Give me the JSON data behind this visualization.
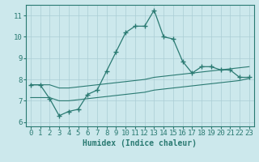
{
  "title": "",
  "xlabel": "Humidex (Indice chaleur)",
  "ylabel": "",
  "bg_color": "#cce8ec",
  "grid_color": "#aacdd4",
  "line_color": "#2a7a72",
  "xlim": [
    -0.5,
    23.5
  ],
  "ylim": [
    5.8,
    11.5
  ],
  "yticks": [
    6,
    7,
    8,
    9,
    10,
    11
  ],
  "xticks": [
    0,
    1,
    2,
    3,
    4,
    5,
    6,
    7,
    8,
    9,
    10,
    11,
    12,
    13,
    14,
    15,
    16,
    17,
    18,
    19,
    20,
    21,
    22,
    23
  ],
  "line1_x": [
    0,
    1,
    2,
    3,
    4,
    5,
    6,
    7,
    8,
    9,
    10,
    11,
    12,
    13,
    14,
    15,
    16,
    17,
    18,
    19,
    20,
    21,
    22,
    23
  ],
  "line1_y": [
    7.75,
    7.75,
    7.1,
    6.3,
    6.5,
    6.6,
    7.3,
    7.5,
    8.4,
    9.3,
    10.2,
    10.5,
    10.5,
    11.25,
    10.0,
    9.9,
    8.85,
    8.3,
    8.6,
    8.6,
    8.45,
    8.45,
    8.1,
    8.1
  ],
  "line2_x": [
    0,
    1,
    2,
    3,
    4,
    5,
    6,
    7,
    8,
    9,
    10,
    11,
    12,
    13,
    14,
    15,
    16,
    17,
    18,
    19,
    20,
    21,
    22,
    23
  ],
  "line2_y": [
    7.75,
    7.75,
    7.75,
    7.6,
    7.6,
    7.65,
    7.7,
    7.75,
    7.8,
    7.85,
    7.9,
    7.95,
    8.0,
    8.1,
    8.15,
    8.2,
    8.25,
    8.3,
    8.35,
    8.4,
    8.45,
    8.5,
    8.55,
    8.6
  ],
  "line3_x": [
    0,
    1,
    2,
    3,
    4,
    5,
    6,
    7,
    8,
    9,
    10,
    11,
    12,
    13,
    14,
    15,
    16,
    17,
    18,
    19,
    20,
    21,
    22,
    23
  ],
  "line3_y": [
    7.15,
    7.15,
    7.15,
    7.0,
    7.0,
    7.05,
    7.1,
    7.15,
    7.2,
    7.25,
    7.3,
    7.35,
    7.4,
    7.5,
    7.55,
    7.6,
    7.65,
    7.7,
    7.75,
    7.8,
    7.85,
    7.9,
    7.95,
    8.05
  ],
  "xlabel_fontsize": 7,
  "tick_fontsize": 6.5
}
